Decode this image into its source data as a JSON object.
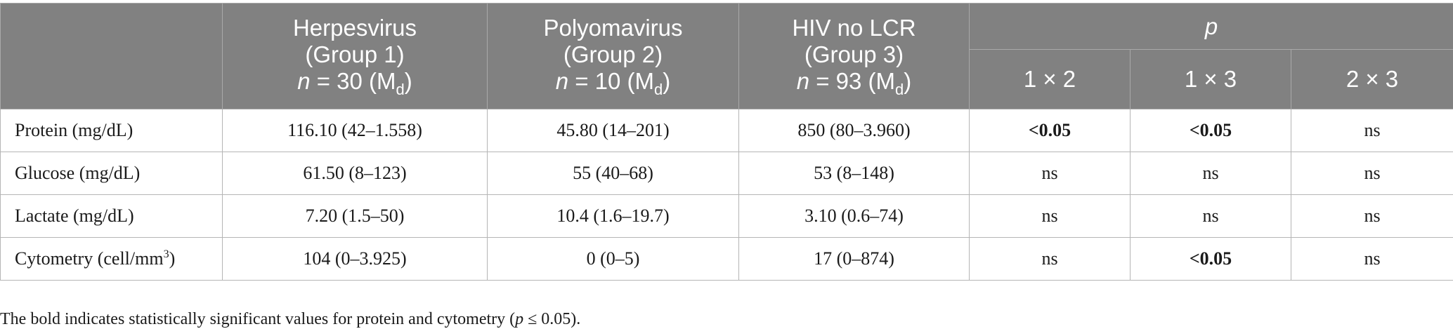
{
  "table": {
    "header": {
      "groups": [
        {
          "name": "Herpesvirus",
          "group": "(Group 1)",
          "n_label": "n",
          "n_rest": " = 30 (M",
          "sub": "d",
          "close": ")"
        },
        {
          "name": "Polyomavirus",
          "group": "(Group 2)",
          "n_label": "n",
          "n_rest": " = 10 (M",
          "sub": "d",
          "close": ")"
        },
        {
          "name": "HIV no LCR",
          "group": "(Group 3)",
          "n_label": "n",
          "n_rest": " = 93 (M",
          "sub": "d",
          "close": ")"
        }
      ],
      "p_label": "p",
      "comparisons": [
        "1 × 2",
        "1 × 3",
        "2 × 3"
      ]
    },
    "rows": [
      {
        "label": "Protein (mg/dL)",
        "g1": "116.10 (42–1.558)",
        "g2": "45.80 (14–201)",
        "g3": "850 (80–3.960)",
        "p12": "<0.05",
        "p13": "<0.05",
        "p23": "ns"
      },
      {
        "label": "Glucose (mg/dL)",
        "g1": "61.50 (8–123)",
        "g2": "55 (40–68)",
        "g3": "53 (8–148)",
        "p12": "ns",
        "p13": "ns",
        "p23": "ns"
      },
      {
        "label": "Lactate (mg/dL)",
        "g1": "7.20 (1.5–50)",
        "g2": "10.4 (1.6–19.7)",
        "g3": "3.10 (0.6–74)",
        "p12": "ns",
        "p13": "ns",
        "p23": "ns"
      },
      {
        "label_main": "Cytometry (cell/mm",
        "label_sup": "3",
        "label_close": ")",
        "g1": "104 (0–3.925)",
        "g2": "0 (0–5)",
        "g3": "17 (0–874)",
        "p12": "ns",
        "p13": "<0.05",
        "p23": "ns"
      }
    ]
  },
  "footnote": {
    "text_before": "The bold indicates statistically significant values for protein and cytometry (",
    "p_symbol": "p",
    "text_after": " ≤ 0.05)."
  },
  "colors": {
    "header_bg": "#818181",
    "header_text": "#ffffff",
    "border": "#b5b5b5"
  }
}
